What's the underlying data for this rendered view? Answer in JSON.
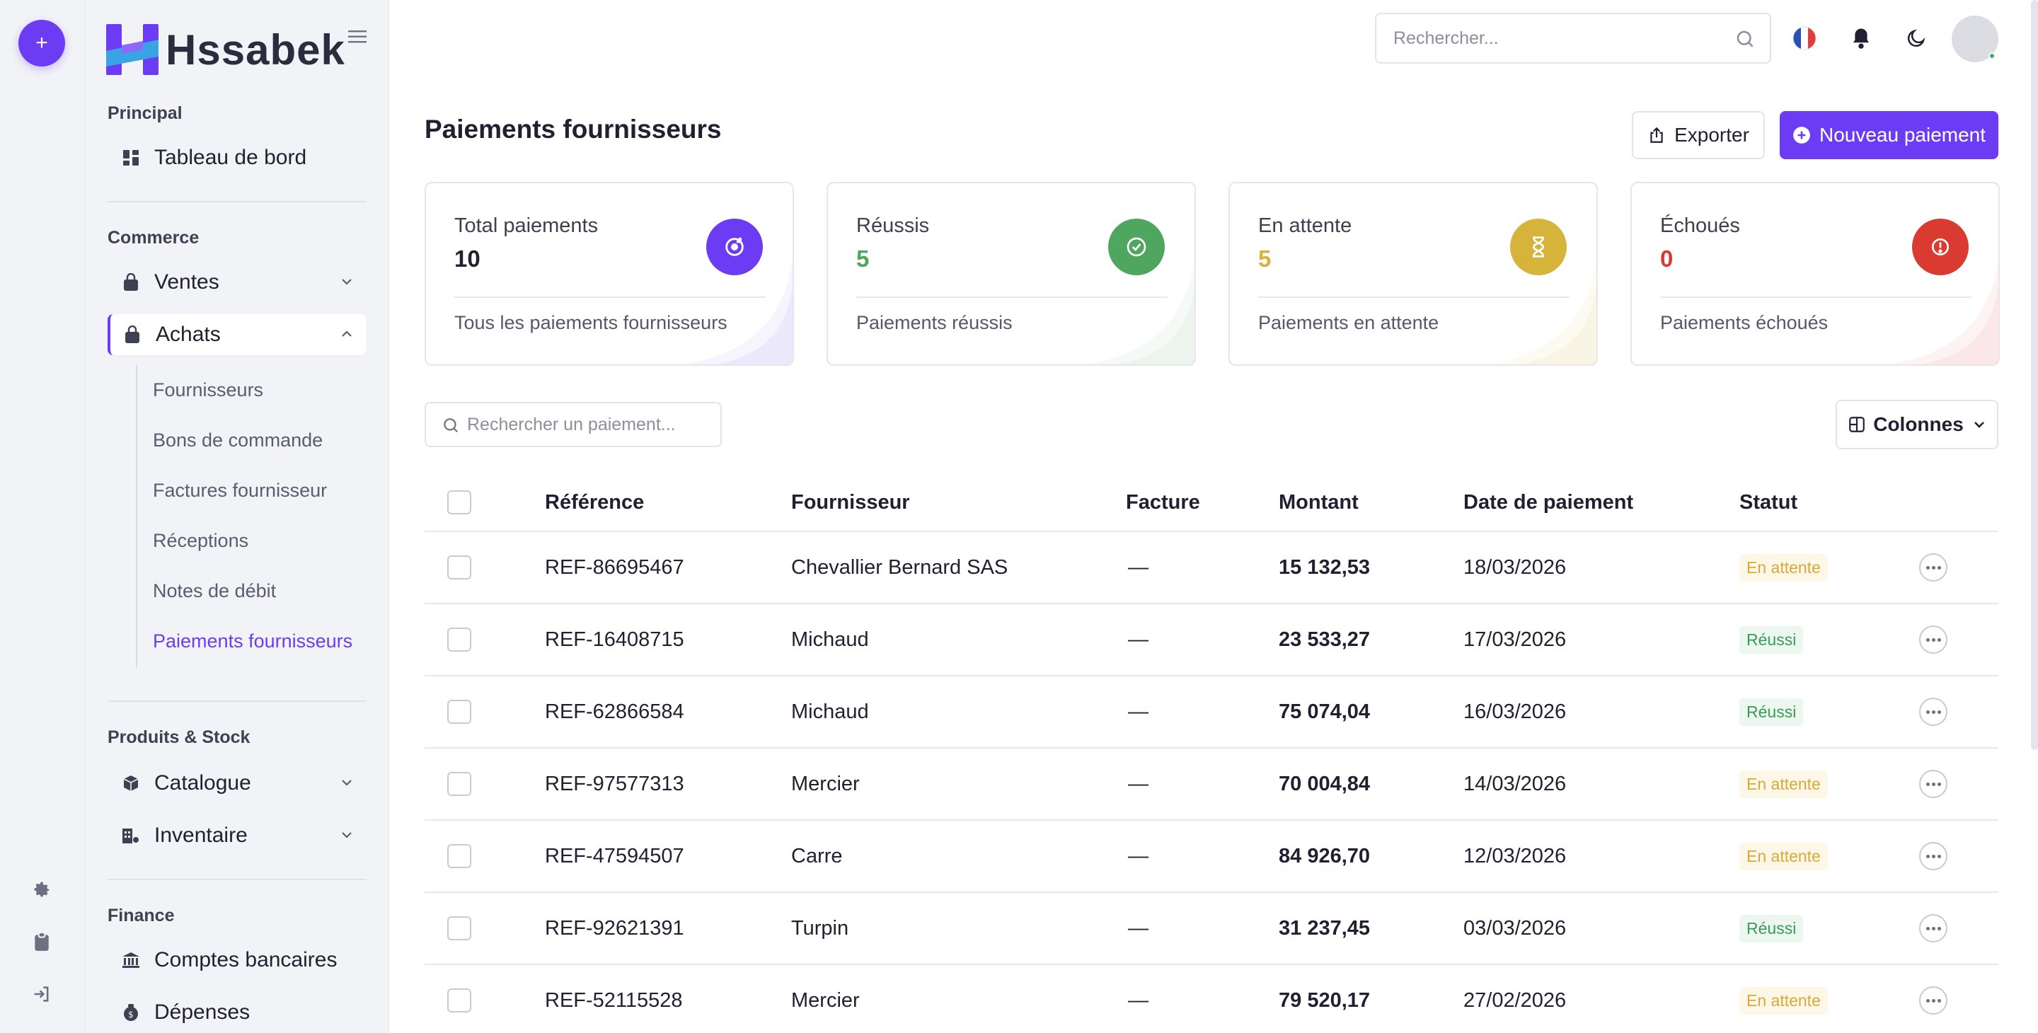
{
  "app": {
    "name": "Hssabek"
  },
  "rail": {
    "add_label": "+"
  },
  "header": {
    "search_placeholder": "Rechercher..."
  },
  "sidebar": {
    "sections": {
      "principal": "Principal",
      "commerce": "Commerce",
      "produits": "Produits & Stock",
      "finance": "Finance"
    },
    "items": {
      "dashboard": "Tableau de bord",
      "ventes": "Ventes",
      "achats": "Achats",
      "catalogue": "Catalogue",
      "inventaire": "Inventaire",
      "comptes": "Comptes bancaires",
      "depenses": "Dépenses"
    },
    "achats_sub": [
      "Fournisseurs",
      "Bons de commande",
      "Factures fournisseur",
      "Réceptions",
      "Notes de débit",
      "Paiements fournisseurs"
    ]
  },
  "page": {
    "title": "Paiements fournisseurs",
    "export_label": "Exporter",
    "new_label": "Nouveau paiement"
  },
  "stats": [
    {
      "label": "Total paiements",
      "value": "10",
      "sub": "Tous les paiements fournisseurs",
      "color": "#6c3cf4",
      "icon": "coin-refresh-icon"
    },
    {
      "label": "Réussis",
      "value": "5",
      "sub": "Paiements réussis",
      "color": "#4fa65f",
      "icon": "check-circle-icon"
    },
    {
      "label": "En attente",
      "value": "5",
      "sub": "Paiements en attente",
      "color": "#d6b43c",
      "icon": "hourglass-icon"
    },
    {
      "label": "Échoués",
      "value": "0",
      "sub": "Paiements échoués",
      "color": "#d93b30",
      "icon": "alert-circle-icon"
    }
  ],
  "table": {
    "search_placeholder": "Rechercher un paiement...",
    "columns_label": "Colonnes",
    "headers": {
      "reference": "Référence",
      "supplier": "Fournisseur",
      "invoice": "Facture",
      "amount": "Montant",
      "date": "Date de paiement",
      "status": "Statut"
    },
    "rows": [
      {
        "reference": "REF-86695467",
        "supplier": "Chevallier Bernard SAS",
        "invoice": "—",
        "amount": "15 132,53",
        "date": "18/03/2026",
        "status": "En attente",
        "state": "pending"
      },
      {
        "reference": "REF-16408715",
        "supplier": "Michaud",
        "invoice": "—",
        "amount": "23 533,27",
        "date": "17/03/2026",
        "status": "Réussi",
        "state": "success"
      },
      {
        "reference": "REF-62866584",
        "supplier": "Michaud",
        "invoice": "—",
        "amount": "75 074,04",
        "date": "16/03/2026",
        "status": "Réussi",
        "state": "success"
      },
      {
        "reference": "REF-97577313",
        "supplier": "Mercier",
        "invoice": "—",
        "amount": "70 004,84",
        "date": "14/03/2026",
        "status": "En attente",
        "state": "pending"
      },
      {
        "reference": "REF-47594507",
        "supplier": "Carre",
        "invoice": "—",
        "amount": "84 926,70",
        "date": "12/03/2026",
        "status": "En attente",
        "state": "pending"
      },
      {
        "reference": "REF-92621391",
        "supplier": "Turpin",
        "invoice": "—",
        "amount": "31 237,45",
        "date": "03/03/2026",
        "status": "Réussi",
        "state": "success"
      },
      {
        "reference": "REF-52115528",
        "supplier": "Mercier",
        "invoice": "—",
        "amount": "79 520,17",
        "date": "27/02/2026",
        "status": "En attente",
        "state": "pending"
      }
    ]
  }
}
